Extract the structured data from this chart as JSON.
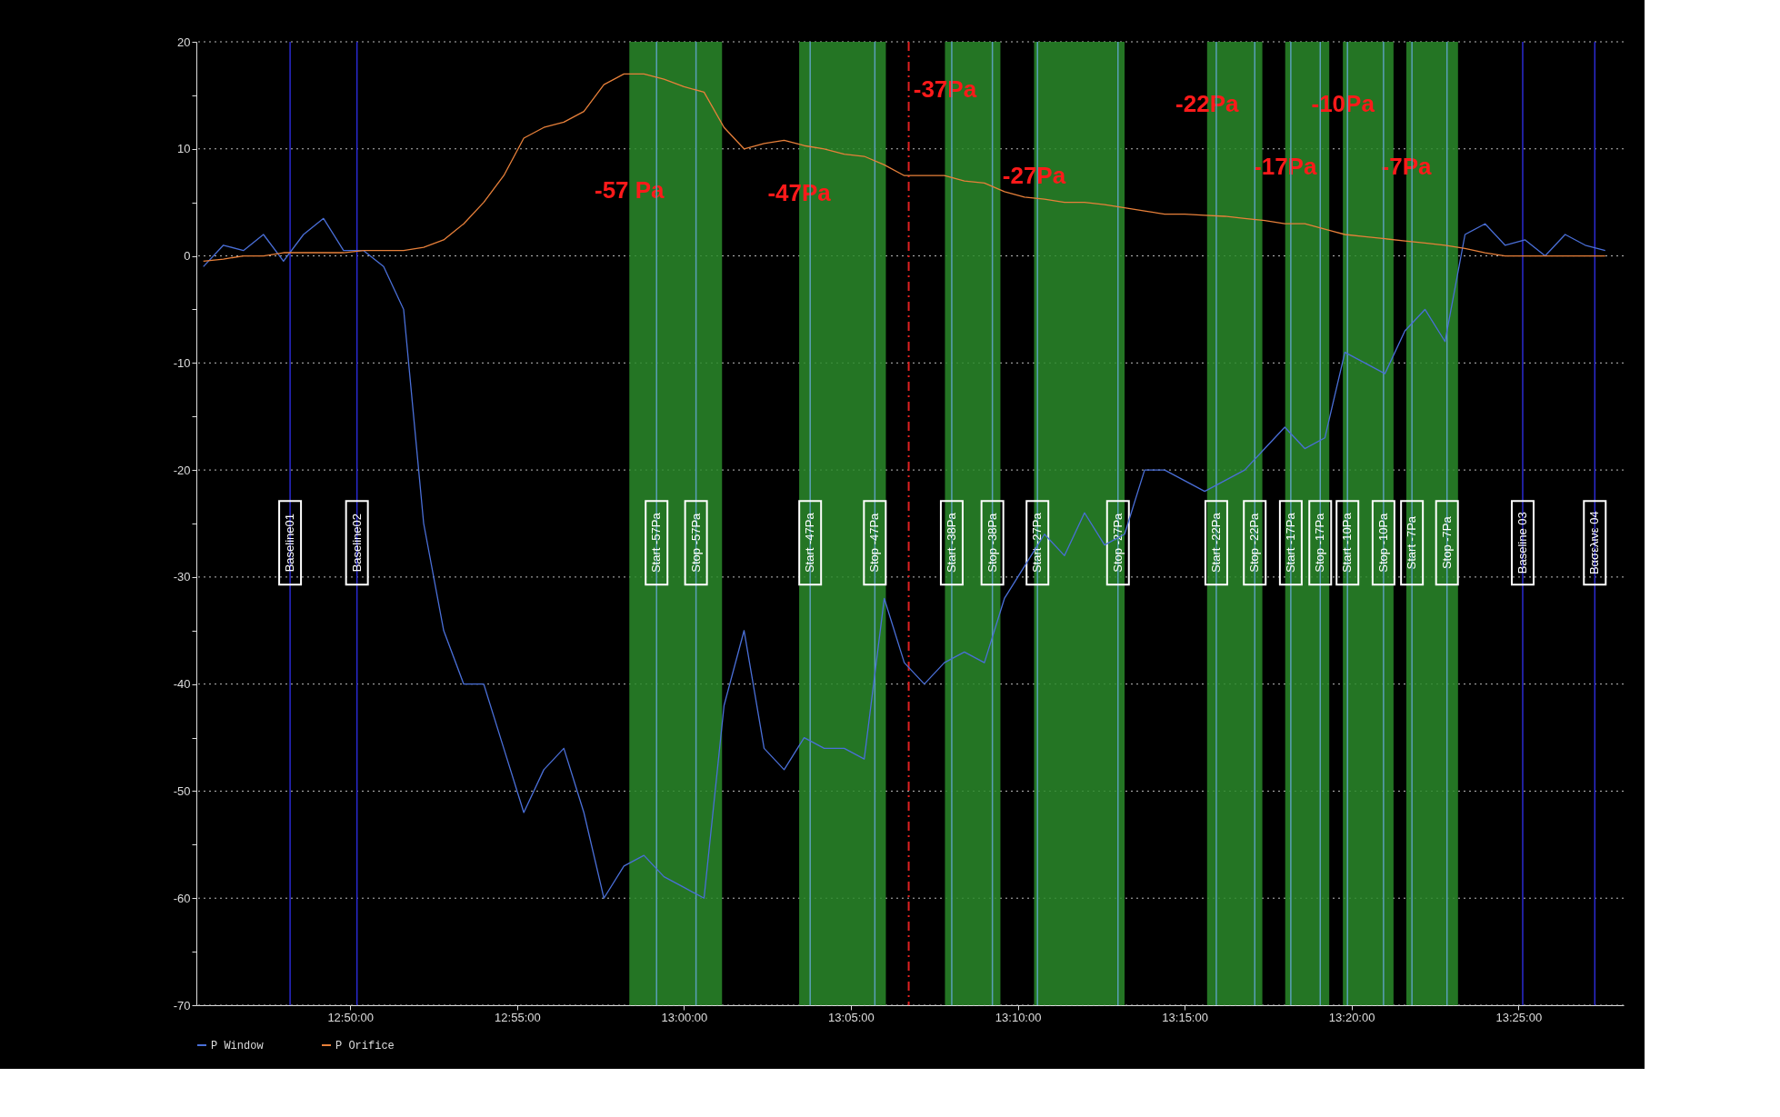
{
  "chart_data": {
    "type": "line",
    "legend": "bottom",
    "grid": "y",
    "line_style": "solid",
    "marker": "none",
    "x": [
      12.76,
      12.77,
      12.78,
      12.79,
      12.8,
      12.81,
      12.82,
      12.83,
      12.84,
      12.85,
      12.86,
      12.87,
      12.88,
      12.89,
      12.9,
      12.91,
      12.92,
      12.93,
      12.94,
      12.95,
      12.96,
      12.97,
      12.98,
      12.99,
      13.0,
      13.01,
      13.02,
      13.03,
      13.04,
      13.05,
      13.06,
      13.07,
      13.08,
      13.09,
      13.1,
      13.11,
      13.12,
      13.13,
      13.14,
      13.15,
      13.16,
      13.17,
      13.18,
      13.19,
      13.2,
      13.21,
      13.22,
      13.23,
      13.24,
      13.25,
      13.26,
      13.27,
      13.28,
      13.29,
      13.3,
      13.31,
      13.32,
      13.33,
      13.34,
      13.35,
      13.36,
      13.37,
      13.38,
      13.39,
      13.4,
      13.41,
      13.42,
      13.43,
      13.44,
      13.45,
      13.46
    ],
    "series": [
      {
        "name": "P Window",
        "color": "#4a6fd8",
        "values": [
          -1,
          1,
          0.5,
          2,
          -0.5,
          2,
          3.5,
          0.5,
          0.5,
          -1,
          -5,
          -25,
          -35,
          -40,
          -40,
          -46,
          -52,
          -48,
          -46,
          -52,
          -60,
          -57,
          -56,
          -58,
          -59,
          -60,
          -42,
          -35,
          -46,
          -48,
          -45,
          -46,
          -46,
          -47,
          -32,
          -38,
          -40,
          -38,
          -37,
          -38,
          -32,
          -29,
          -26,
          -28,
          -24,
          -27,
          -26,
          -20,
          -20,
          -21,
          -22,
          -21,
          -20,
          -18,
          -16,
          -18,
          -17,
          -9,
          -10,
          -11,
          -7,
          -5,
          -8,
          2,
          3,
          1,
          1.5,
          0,
          2,
          1,
          0.5
        ]
      },
      {
        "name": "P Orifice",
        "color": "#e8803a",
        "values": [
          -0.5,
          -0.3,
          0,
          0,
          0.3,
          0.3,
          0.3,
          0.3,
          0.5,
          0.5,
          0.5,
          0.8,
          1.5,
          3,
          5,
          7.5,
          11,
          12,
          12.5,
          13.5,
          16,
          17,
          17,
          16.5,
          15.8,
          15.3,
          12,
          10,
          10.5,
          10.8,
          10.3,
          10,
          9.5,
          9.3,
          8.5,
          7.5,
          7.5,
          7.5,
          7,
          6.8,
          6,
          5.5,
          5.3,
          5,
          5,
          4.8,
          4.5,
          4.2,
          3.9,
          3.9,
          3.8,
          3.7,
          3.5,
          3.3,
          3,
          3,
          2.5,
          2,
          1.8,
          1.6,
          1.4,
          1.2,
          1,
          0.7,
          0.3,
          0,
          0,
          0,
          0,
          0,
          0
        ]
      }
    ],
    "xlim": [
      12.7565,
      13.4692
    ],
    "xticks": [
      {
        "value": 12.8333,
        "label": "12:50:00"
      },
      {
        "value": 12.9167,
        "label": "12:55:00"
      },
      {
        "value": 13,
        "label": "13:00:00"
      },
      {
        "value": 13.0833,
        "label": "13:05:00"
      },
      {
        "value": 13.1667,
        "label": "13:10:00"
      },
      {
        "value": 13.25,
        "label": "13:15:00"
      },
      {
        "value": 13.3333,
        "label": "13:20:00"
      },
      {
        "value": 13.4167,
        "label": "13:25:00"
      }
    ],
    "ylim": [
      -70,
      20
    ],
    "yticks": [
      -70,
      {
        "value": -65,
        "label": null
      },
      -60,
      {
        "value": -55,
        "label": null
      },
      -50,
      {
        "value": -45,
        "label": null
      },
      -40,
      {
        "value": -35,
        "label": null
      },
      -30,
      {
        "value": -25,
        "label": null
      },
      -20,
      {
        "value": -15,
        "label": null
      },
      -10,
      {
        "value": -5,
        "label": null
      },
      0,
      {
        "value": 5,
        "label": null
      },
      10,
      {
        "value": 15,
        "label": null
      },
      20
    ],
    "bands": [
      {
        "axis": "x",
        "from": 12.9727,
        "to": 13.019,
        "color": "#2a8a2a",
        "label": "-57 Pa"
      },
      {
        "axis": "x",
        "from": 13.0575,
        "to": 13.1008,
        "color": "#2a8a2a",
        "label": "-47Pa"
      },
      {
        "axis": "x",
        "from": 13.1303,
        "to": 13.158,
        "color": "#2a8a2a",
        "label": "-37Pa"
      },
      {
        "axis": "x",
        "from": 13.1748,
        "to": 13.22,
        "color": "#2a8a2a",
        "label": "-27Pa"
      },
      {
        "axis": "x",
        "from": 13.2612,
        "to": 13.2888,
        "color": "#2a8a2a",
        "label": "-22Pa"
      },
      {
        "axis": "x",
        "from": 13.3002,
        "to": 13.3222,
        "color": "#2a8a2a",
        "label": "-17Pa"
      },
      {
        "axis": "x",
        "from": 13.329,
        "to": 13.3543,
        "color": "#2a8a2a",
        "label": "-10Pa"
      },
      {
        "axis": "x",
        "from": 13.3607,
        "to": 13.3865,
        "color": "#2a8a2a",
        "label": "-7Pa"
      }
    ],
    "ref_lines": [
      {
        "axis": "x",
        "value": 12.8033,
        "label": "Baseline01",
        "color": "#2a2ad0"
      },
      {
        "axis": "x",
        "value": 12.8367,
        "label": "Baseline02",
        "color": "#2a2ad0"
      },
      {
        "axis": "x",
        "value": 12.9863,
        "label": "Start -57Pa",
        "color": "#5aa0b8"
      },
      {
        "axis": "x",
        "value": 13.006,
        "label": "Stop -57Pa",
        "color": "#5aa0b8"
      },
      {
        "axis": "x",
        "value": 13.063,
        "label": "Start -47Pa",
        "color": "#5aa0b8"
      },
      {
        "axis": "x",
        "value": 13.0953,
        "label": "Stop -47Pa",
        "color": "#5aa0b8"
      },
      {
        "axis": "x",
        "value": 13.1122,
        "color": "#e02020",
        "line_style": "dashed"
      },
      {
        "axis": "x",
        "value": 13.1337,
        "label": "Start -38Pa",
        "color": "#5aa0b8"
      },
      {
        "axis": "x",
        "value": 13.154,
        "label": "Stop -38Pa",
        "color": "#5aa0b8"
      },
      {
        "axis": "x",
        "value": 13.1765,
        "label": "Start -27Pa",
        "color": "#5aa0b8"
      },
      {
        "axis": "x",
        "value": 13.2167,
        "label": "Stop -27Pa",
        "color": "#5aa0b8"
      },
      {
        "axis": "x",
        "value": 13.2658,
        "label": "Start -22Pa",
        "color": "#5aa0b8"
      },
      {
        "axis": "x",
        "value": 13.285,
        "label": "Stop -22Pa",
        "color": "#5aa0b8"
      },
      {
        "axis": "x",
        "value": 13.303,
        "label": "Start -17Pa",
        "color": "#5aa0b8"
      },
      {
        "axis": "x",
        "value": 13.3177,
        "label": "Stop -17Pa",
        "color": "#5aa0b8"
      },
      {
        "axis": "x",
        "value": 13.3313,
        "label": "Start -10Pa",
        "color": "#5aa0b8"
      },
      {
        "axis": "x",
        "value": 13.3493,
        "label": "Stop -10Pa",
        "color": "#5aa0b8"
      },
      {
        "axis": "x",
        "value": 13.3635,
        "label": "Start -7Pa",
        "color": "#5aa0b8"
      },
      {
        "axis": "x",
        "value": 13.381,
        "label": "Stop -7Pa",
        "color": "#5aa0b8"
      },
      {
        "axis": "x",
        "value": 13.4188,
        "label": "Baseline 03",
        "color": "#2a2ad0"
      },
      {
        "axis": "x",
        "value": 13.4548,
        "label": "Βασελινε 04",
        "color": "#2a2ad0"
      }
    ]
  }
}
